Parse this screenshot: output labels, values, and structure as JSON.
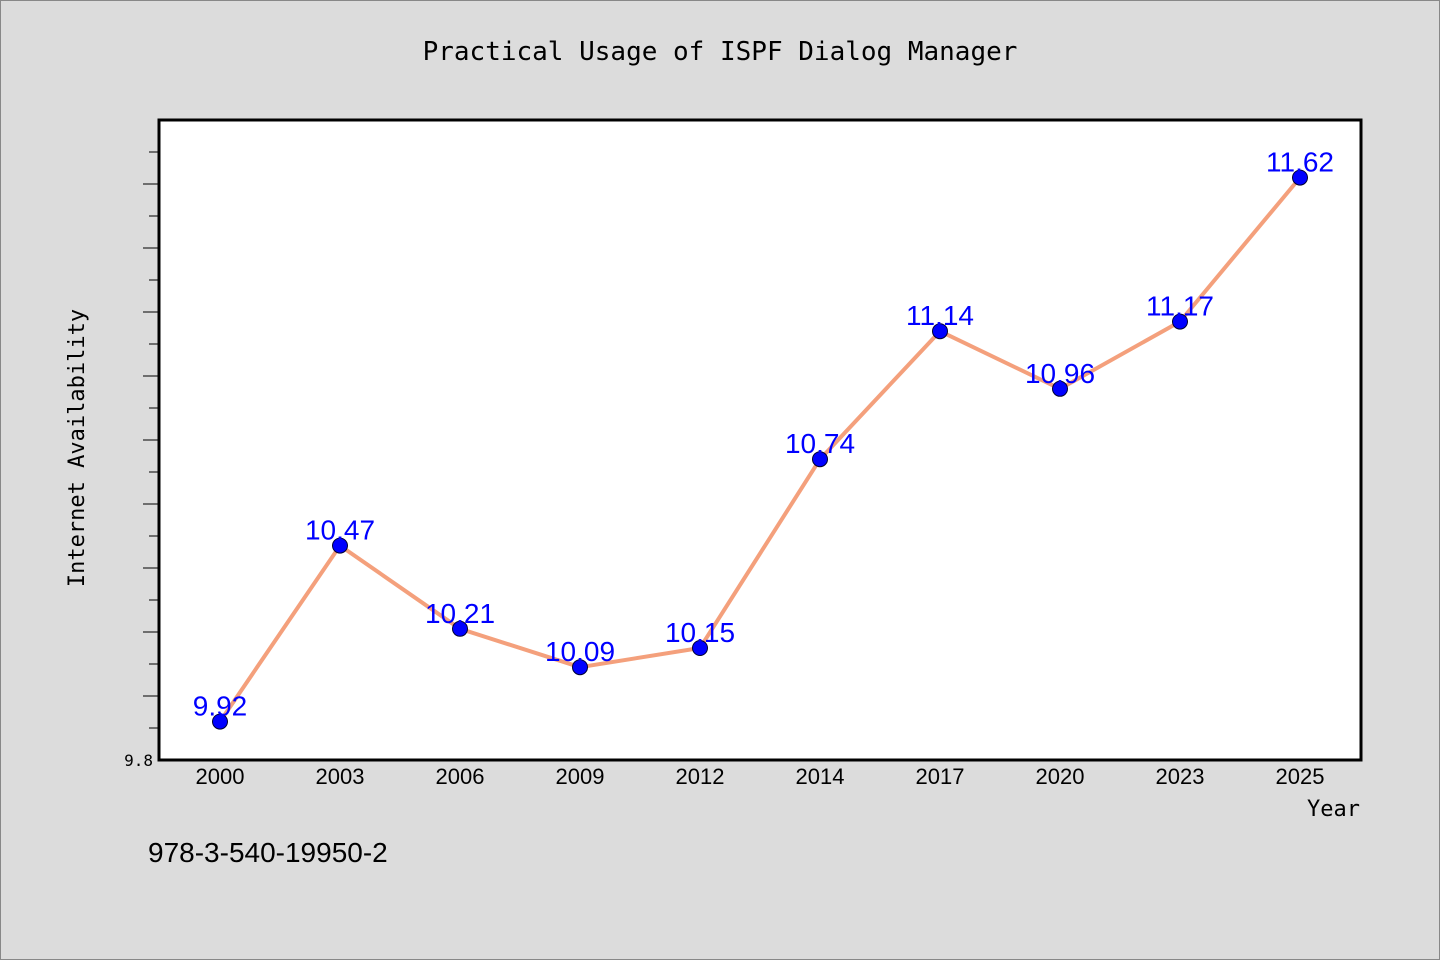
{
  "chart_data": {
    "type": "line",
    "title": "Practical Usage of ISPF Dialog Manager",
    "xlabel": "Year",
    "ylabel": "Internet Availability",
    "categories": [
      "2000",
      "2003",
      "2006",
      "2009",
      "2012",
      "2014",
      "2017",
      "2020",
      "2023",
      "2025"
    ],
    "values": [
      9.92,
      10.47,
      10.21,
      10.09,
      10.15,
      10.74,
      11.14,
      10.96,
      11.17,
      11.62
    ],
    "data_labels": [
      "9.92",
      "10.47",
      "10.21",
      "10.09",
      "10.15",
      "10.74",
      "11.14",
      "10.96",
      "11.17",
      "11.62"
    ],
    "ylim": [
      9.8,
      11.8
    ],
    "y_tick_labels": [
      "9.8"
    ],
    "grid": false,
    "line_color": "#f4a07c",
    "marker_color": "#0000ff",
    "label_color": "#0000ff",
    "background": "#dcdcdc",
    "plot_background": "#ffffff"
  },
  "footer_text": "978-3-540-19950-2"
}
